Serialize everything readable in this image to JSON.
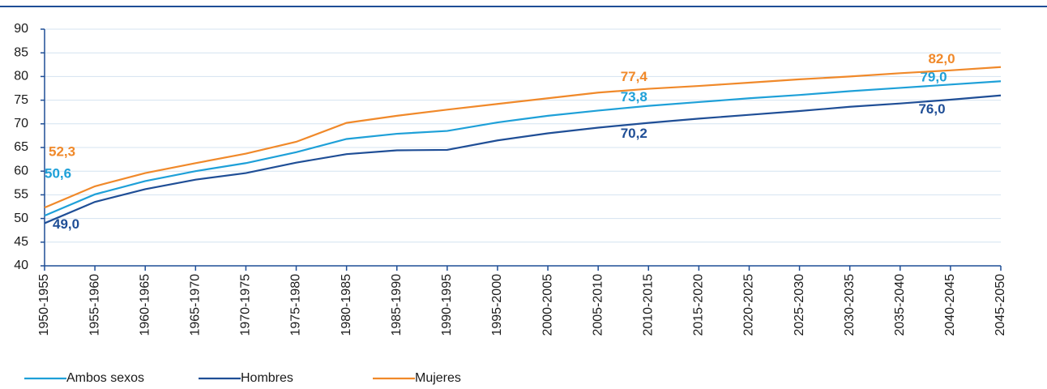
{
  "chart_data": {
    "type": "line",
    "categories": [
      "1950-1955",
      "1955-1960",
      "1960-1965",
      "1965-1970",
      "1970-1975",
      "1975-1980",
      "1980-1985",
      "1985-1990",
      "1990-1995",
      "1995-2000",
      "2000-2005",
      "2005-2010",
      "2010-2015",
      "2015-2020",
      "2020-2025",
      "2025-2030",
      "2030-2035",
      "2035-2040",
      "2040-2045",
      "2045-2050"
    ],
    "series": [
      {
        "name": "Ambos sexos",
        "color": "#1ea0d8",
        "values": [
          50.6,
          55.1,
          57.9,
          60.0,
          61.7,
          64.0,
          66.8,
          67.9,
          68.5,
          70.3,
          71.7,
          72.8,
          73.8,
          74.6,
          75.4,
          76.1,
          76.9,
          77.6,
          78.3,
          79.0
        ],
        "value_labels": [
          "50,6",
          null,
          null,
          null,
          null,
          null,
          null,
          null,
          null,
          null,
          null,
          null,
          "73,8",
          null,
          null,
          null,
          null,
          null,
          null,
          "79,0"
        ]
      },
      {
        "name": "Hombres",
        "color": "#1f4e96",
        "values": [
          49.0,
          53.5,
          56.2,
          58.2,
          59.6,
          61.8,
          63.6,
          64.4,
          64.5,
          66.5,
          68.0,
          69.2,
          70.2,
          71.1,
          71.9,
          72.7,
          73.6,
          74.3,
          75.1,
          76.0
        ],
        "value_labels": [
          "49,0",
          null,
          null,
          null,
          null,
          null,
          null,
          null,
          null,
          null,
          null,
          null,
          "70,2",
          null,
          null,
          null,
          null,
          null,
          null,
          "76,0"
        ]
      },
      {
        "name": "Mujeres",
        "color": "#f0892a",
        "values": [
          52.3,
          56.8,
          59.6,
          61.7,
          63.7,
          66.2,
          70.2,
          71.7,
          73.0,
          74.2,
          75.4,
          76.6,
          77.4,
          78.0,
          78.7,
          79.4,
          80.0,
          80.7,
          81.3,
          82.0
        ],
        "value_labels": [
          "52,3",
          null,
          null,
          null,
          null,
          null,
          null,
          null,
          null,
          null,
          null,
          null,
          "77,4",
          null,
          null,
          null,
          null,
          null,
          null,
          "82,0"
        ]
      }
    ],
    "ylim": [
      40,
      90
    ],
    "yticks": [
      40,
      45,
      50,
      55,
      60,
      65,
      70,
      75,
      80,
      85,
      90
    ],
    "grid": true
  }
}
